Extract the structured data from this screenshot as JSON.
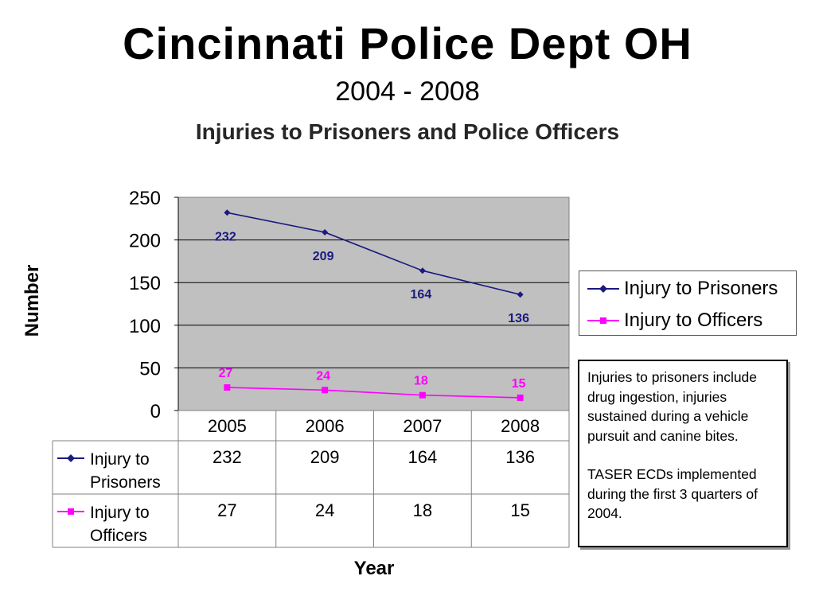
{
  "page": {
    "title": "Cincinnati Police Dept OH",
    "subtitle": "2004 - 2008"
  },
  "chart_data": {
    "type": "line",
    "title": "Injuries to Prisoners and Police Officers",
    "xlabel": "Year",
    "ylabel": "Number",
    "categories": [
      "2005",
      "2006",
      "2007",
      "2008"
    ],
    "ylim": [
      0,
      250
    ],
    "yticks": [
      0,
      50,
      100,
      150,
      200,
      250
    ],
    "grid": true,
    "legend_position": "right",
    "series": [
      {
        "name": "Injury to Prisoners",
        "table_label": [
          "Injury to",
          "Prisoners"
        ],
        "values": [
          232,
          209,
          164,
          136
        ],
        "color": "#1a1a80",
        "marker": "diamond"
      },
      {
        "name": "Injury to Officers",
        "table_label": [
          "Injury to",
          "Officers"
        ],
        "values": [
          27,
          24,
          18,
          15
        ],
        "color": "#ff00ff",
        "marker": "square"
      }
    ],
    "plot_background": "#c0c0c0"
  },
  "note": {
    "paragraph1": "Injuries to prisoners include drug ingestion, injuries sustained during a vehicle pursuit and canine bites.",
    "paragraph2": "TASER ECDs implemented during the first 3 quarters of 2004."
  }
}
